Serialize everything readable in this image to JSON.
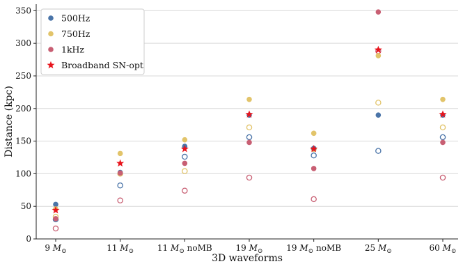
{
  "chart_data": {
    "type": "scatter",
    "title": "",
    "xlabel": "3D waveforms",
    "ylabel": "Distance (kpc)",
    "ylim": [
      0,
      360
    ],
    "yticks": [
      0,
      50,
      100,
      150,
      200,
      250,
      300,
      350
    ],
    "grid": "horizontal",
    "legend_position": "top-left",
    "categories": [
      {
        "main": "9 ",
        "mass": "M",
        "sub": "⊙",
        "suffix": ""
      },
      {
        "main": "11 ",
        "mass": "M",
        "sub": "⊙",
        "suffix": ""
      },
      {
        "main": "11 ",
        "mass": "M",
        "sub": "⊙",
        "suffix": " noMB"
      },
      {
        "main": "19 ",
        "mass": "M",
        "sub": "⊙",
        "suffix": ""
      },
      {
        "main": "19 ",
        "mass": "M",
        "sub": "⊙",
        "suffix": " noMB"
      },
      {
        "main": "25 ",
        "mass": "M",
        "sub": "⊙",
        "suffix": ""
      },
      {
        "main": "60 ",
        "mass": "M",
        "sub": "⊙",
        "suffix": ""
      }
    ],
    "series": [
      {
        "name": "500Hz",
        "color": "#4a74a8",
        "marker": "circle",
        "filled_values": [
          53,
          102,
          142,
          190,
          139,
          190,
          190
        ],
        "open_values": [
          30,
          82,
          126,
          156,
          128,
          135,
          156
        ]
      },
      {
        "name": "750Hz",
        "color": "#e2c46a",
        "marker": "circle",
        "filled_values": [
          46,
          131,
          152,
          214,
          162,
          281,
          214
        ],
        "open_values": [
          34,
          100,
          104,
          171,
          138,
          209,
          171
        ]
      },
      {
        "name": "1kHz",
        "color": "#c85f73",
        "marker": "circle",
        "filled_values": [
          31,
          101,
          116,
          148,
          108,
          348,
          148
        ],
        "open_values": [
          16,
          59,
          74,
          94,
          61,
          288,
          94
        ]
      },
      {
        "name": "Broadband SN-opt",
        "color": "#e8141c",
        "marker": "star",
        "filled_values": [
          44,
          116,
          138,
          191,
          138,
          290,
          191
        ],
        "open_values": []
      }
    ]
  }
}
